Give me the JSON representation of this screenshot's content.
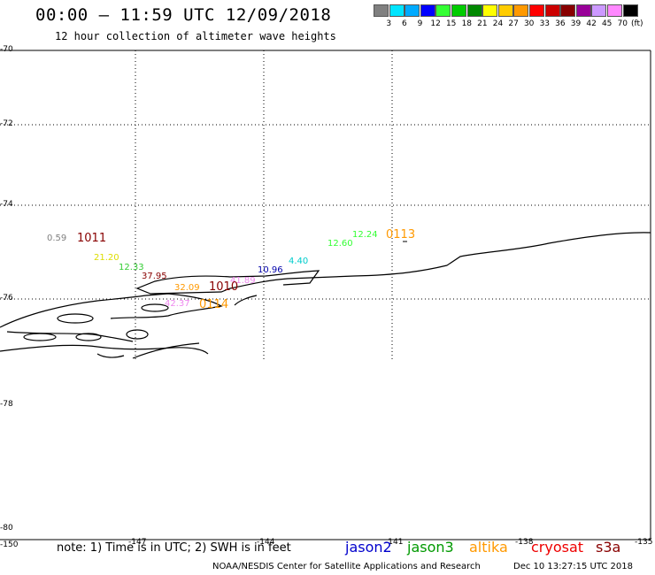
{
  "header": {
    "title": "00:00 – 11:59 UTC 12/09/2018",
    "subtitle": "12 hour collection of altimeter wave heights"
  },
  "legend": {
    "colors": [
      "#808080",
      "#00e5ff",
      "#00aaff",
      "#0000ff",
      "#33ff33",
      "#00cc00",
      "#008800",
      "#ffff00",
      "#ffcc00",
      "#ff9900",
      "#ff0000",
      "#cc0000",
      "#880000",
      "#990099",
      "#cc99ff",
      "#ff88ff",
      "#000000"
    ],
    "values": [
      "3",
      "6",
      "9",
      "12",
      "15",
      "18",
      "21",
      "24",
      "27",
      "30",
      "33",
      "36",
      "39",
      "42",
      "45",
      "70"
    ],
    "unit": "(ft)"
  },
  "lat_labels": [
    "-70",
    "-72",
    "-74",
    "-76",
    "-78",
    "-80"
  ],
  "lon_labels": [
    "-150",
    "-147",
    "-144",
    "-141",
    "-138",
    "-135"
  ],
  "wave_labels": [
    {
      "text": "0.59",
      "color": "#808080"
    },
    {
      "text": "21.20",
      "color": "#dddd00"
    },
    {
      "text": "12.33",
      "color": "#33cc33"
    },
    {
      "text": "37.95",
      "color": "#880000"
    },
    {
      "text": "32.09",
      "color": "#ff9900"
    },
    {
      "text": "42.37",
      "color": "#ee88ee"
    },
    {
      "text": "41.89",
      "color": "#ee88ee"
    },
    {
      "text": "10.96",
      "color": "#0000aa"
    },
    {
      "text": "4.40",
      "color": "#00cccc"
    },
    {
      "text": "12.60",
      "color": "#33ff33"
    },
    {
      "text": "12.24",
      "color": "#33ff33"
    }
  ],
  "time_labels": [
    {
      "text": "1011",
      "color": "#880000"
    },
    {
      "text": "1010",
      "color": "#880000"
    },
    {
      "text": "0114",
      "color": "#ff9900"
    },
    {
      "text": "0113",
      "color": "#ff9900"
    }
  ],
  "note": "note:  1) Time is in UTC;  2) SWH is in feet",
  "satellites": [
    {
      "name": "jason2",
      "color": "#0000cc"
    },
    {
      "name": "jason3",
      "color": "#009900"
    },
    {
      "name": "altika",
      "color": "#ff9900"
    },
    {
      "name": "cryosat",
      "color": "#ee0000"
    },
    {
      "name": "s3a",
      "color": "#880000"
    }
  ],
  "footer": {
    "credit": "NOAA/NESDIS Center for Satellite Applications and Research",
    "generated": "Dec 10 13:27:15 UTC 2018"
  }
}
